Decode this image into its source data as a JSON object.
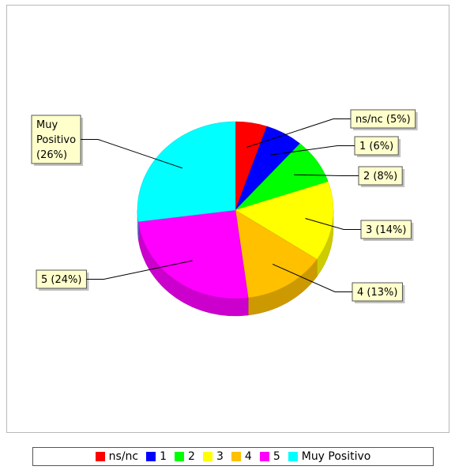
{
  "chart_data": {
    "type": "pie",
    "title": "",
    "three_d": true,
    "legend_position": "bottom",
    "slices": [
      {
        "name": "ns/nc",
        "label": "ns/nc  (5%)",
        "value": 5,
        "color": "#ff0000"
      },
      {
        "name": "1",
        "label": "1  (6%)",
        "value": 6,
        "color": "#0000ff"
      },
      {
        "name": "2",
        "label": "2  (8%)",
        "value": 8,
        "color": "#00ff00"
      },
      {
        "name": "3",
        "label": "3  (14%)",
        "value": 14,
        "color": "#ffff00"
      },
      {
        "name": "4",
        "label": "4  (13%)",
        "value": 13,
        "color": "#ffc000"
      },
      {
        "name": "5",
        "label": "5  (24%)",
        "value": 24,
        "color": "#ff00ff"
      },
      {
        "name": "Muy Positivo",
        "label": "Muy Positivo (26%)",
        "label_lines": [
          "Muy",
          "Positivo",
          "(26%)"
        ],
        "value": 26,
        "color": "#00ffff"
      }
    ]
  }
}
